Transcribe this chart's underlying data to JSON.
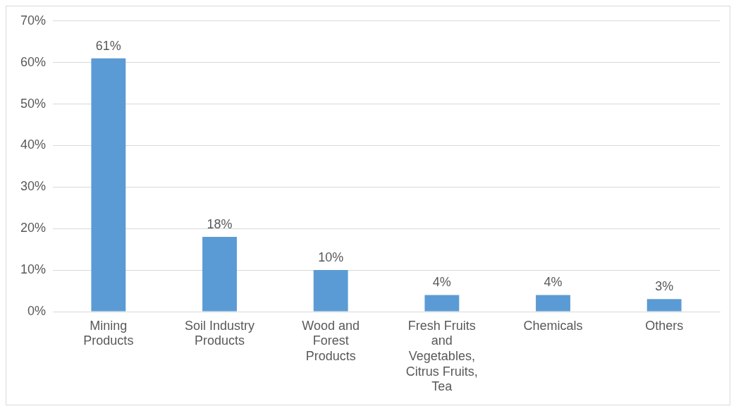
{
  "chart_data": {
    "type": "bar",
    "categories": [
      "Mining Products",
      "Soil Industry Products",
      "Wood and Forest Products",
      "Fresh Fruits and Vegetables, Citrus Fruits, Tea",
      "Chemicals",
      "Others"
    ],
    "values": [
      61,
      18,
      10,
      4,
      4,
      3
    ],
    "value_labels": [
      "61%",
      "18%",
      "10%",
      "4%",
      "4%",
      "3%"
    ],
    "color": "#5b9bd5",
    "ylim": [
      0,
      70
    ],
    "yticks": [
      {
        "value": 0,
        "label": "0%"
      },
      {
        "value": 10,
        "label": "10%"
      },
      {
        "value": 20,
        "label": "20%"
      },
      {
        "value": 30,
        "label": "30%"
      },
      {
        "value": 40,
        "label": "40%"
      },
      {
        "value": 50,
        "label": "50%"
      },
      {
        "value": 60,
        "label": "60%"
      },
      {
        "value": 70,
        "label": "70%"
      }
    ],
    "grid": "y",
    "legend": false
  }
}
